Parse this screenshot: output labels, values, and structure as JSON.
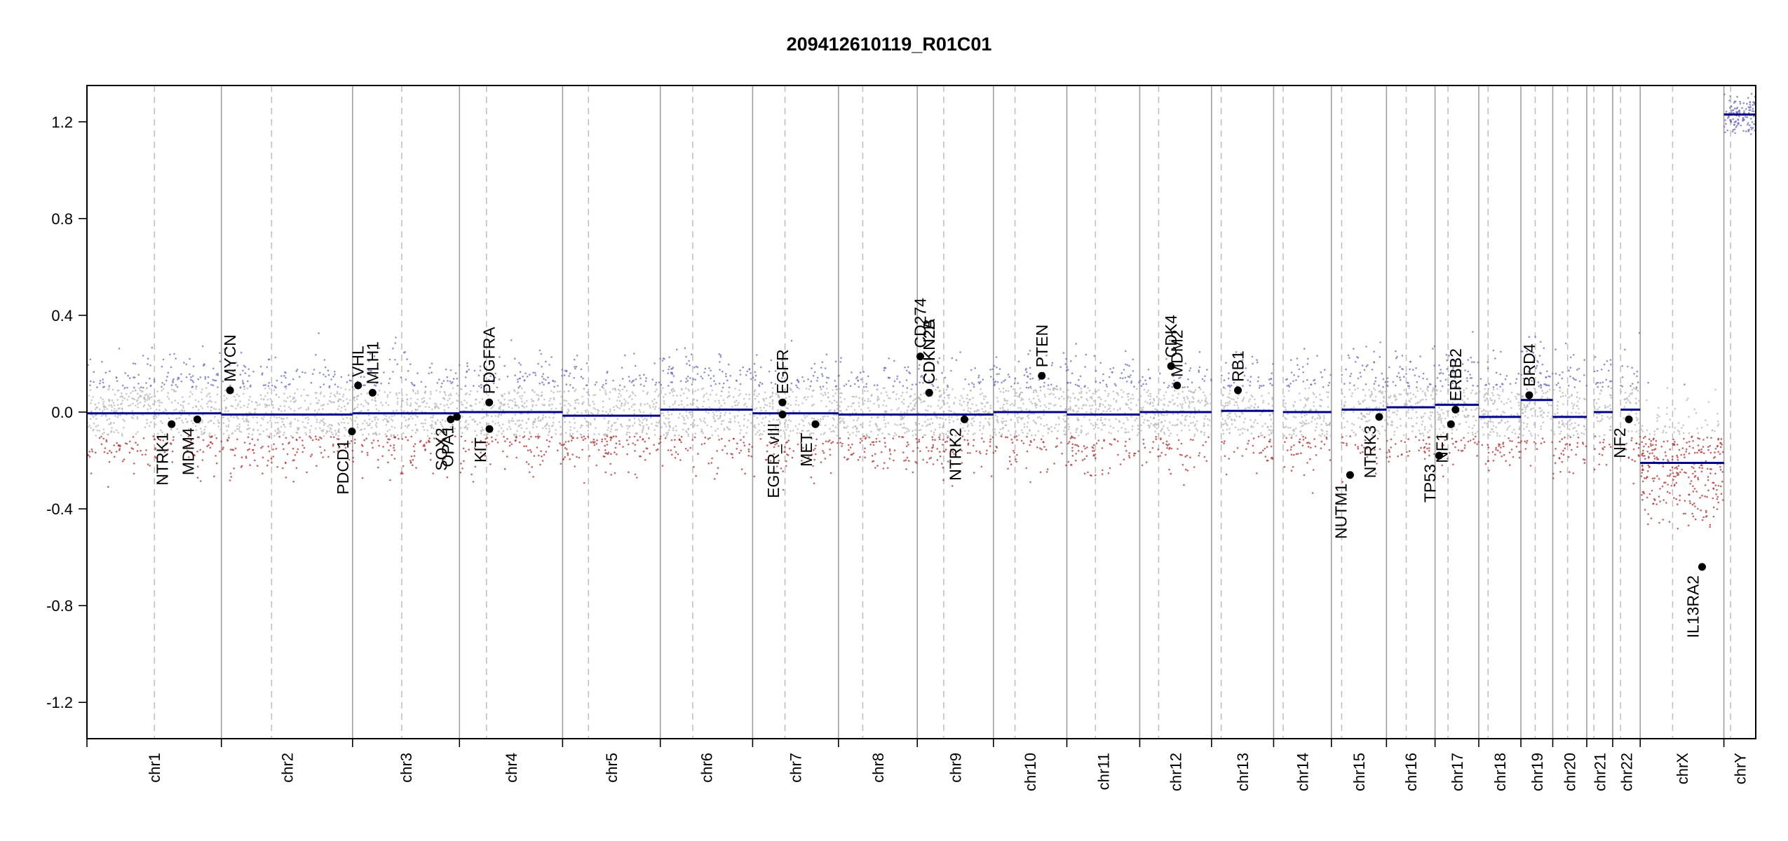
{
  "chart_data": {
    "type": "scatter",
    "title": "209412610119_R01C01",
    "xlabel": "",
    "ylabel": "",
    "ylim": [
      -1.35,
      1.35
    ],
    "yticks": [
      -1.2,
      -0.8,
      -0.4,
      0.0,
      0.4,
      0.8,
      1.2
    ],
    "ytick_labels": [
      "-1.2",
      "-0.8",
      "-0.4",
      "0.0",
      "0.4",
      "0.8",
      "1.2"
    ],
    "colors": {
      "segment": "#00008b",
      "gain_points": "#6b6bc0",
      "loss_points": "#b03030",
      "neutral_points": "#b5b5b5",
      "gene_marker": "#000000",
      "chrom_boundary": "#a0a0a0",
      "centromere": "#c0c0c0"
    },
    "chromosomes": [
      {
        "name": "chr1",
        "length": 249,
        "centromere": 125,
        "segments": [
          {
            "start": 0,
            "end": 249,
            "value": -0.005
          }
        ]
      },
      {
        "name": "chr2",
        "length": 243,
        "centromere": 93,
        "segments": [
          {
            "start": 0,
            "end": 243,
            "value": -0.01
          }
        ]
      },
      {
        "name": "chr3",
        "length": 198,
        "centromere": 91,
        "segments": [
          {
            "start": 0,
            "end": 198,
            "value": -0.005
          }
        ]
      },
      {
        "name": "chr4",
        "length": 191,
        "centromere": 50,
        "segments": [
          {
            "start": 0,
            "end": 191,
            "value": 0.0
          }
        ]
      },
      {
        "name": "chr5",
        "length": 181,
        "centromere": 48,
        "segments": [
          {
            "start": 0,
            "end": 181,
            "value": -0.015
          }
        ]
      },
      {
        "name": "chr6",
        "length": 171,
        "centromere": 60,
        "segments": [
          {
            "start": 0,
            "end": 171,
            "value": 0.01
          }
        ]
      },
      {
        "name": "chr7",
        "length": 159,
        "centromere": 60,
        "segments": [
          {
            "start": 0,
            "end": 159,
            "value": -0.005
          }
        ]
      },
      {
        "name": "chr8",
        "length": 146,
        "centromere": 45,
        "segments": [
          {
            "start": 0,
            "end": 146,
            "value": -0.01
          }
        ]
      },
      {
        "name": "chr9",
        "length": 141,
        "centromere": 49,
        "segments": [
          {
            "start": 0,
            "end": 141,
            "value": -0.01
          }
        ]
      },
      {
        "name": "chr10",
        "length": 136,
        "centromere": 40,
        "segments": [
          {
            "start": 0,
            "end": 136,
            "value": 0.0
          }
        ]
      },
      {
        "name": "chr11",
        "length": 135,
        "centromere": 53,
        "segments": [
          {
            "start": 0,
            "end": 135,
            "value": -0.01
          }
        ]
      },
      {
        "name": "chr12",
        "length": 133,
        "centromere": 35,
        "segments": [
          {
            "start": 0,
            "end": 133,
            "value": 0.0
          }
        ]
      },
      {
        "name": "chr13",
        "length": 115,
        "centromere": 17.9,
        "segments": [
          {
            "start": 17.9,
            "end": 115,
            "value": 0.005
          }
        ]
      },
      {
        "name": "chr14",
        "length": 107,
        "centromere": 17.6,
        "segments": [
          {
            "start": 17.6,
            "end": 107,
            "value": 0.0
          }
        ]
      },
      {
        "name": "chr15",
        "length": 102,
        "centromere": 19,
        "segments": [
          {
            "start": 19,
            "end": 102,
            "value": 0.01
          }
        ]
      },
      {
        "name": "chr16",
        "length": 90,
        "centromere": 36.6,
        "segments": [
          {
            "start": 0,
            "end": 90,
            "value": 0.02
          }
        ]
      },
      {
        "name": "chr17",
        "length": 81,
        "centromere": 24,
        "segments": [
          {
            "start": 0,
            "end": 81,
            "value": 0.03
          }
        ]
      },
      {
        "name": "chr18",
        "length": 78,
        "centromere": 17.2,
        "segments": [
          {
            "start": 0,
            "end": 78,
            "value": -0.02
          }
        ]
      },
      {
        "name": "chr19",
        "length": 59,
        "centromere": 26.5,
        "segments": [
          {
            "start": 0,
            "end": 59,
            "value": 0.05
          }
        ]
      },
      {
        "name": "chr20",
        "length": 63,
        "centromere": 27.5,
        "segments": [
          {
            "start": 0,
            "end": 63,
            "value": -0.02
          }
        ]
      },
      {
        "name": "chr21",
        "length": 48,
        "centromere": 13.2,
        "segments": [
          {
            "start": 13.2,
            "end": 48,
            "value": 0.0
          }
        ]
      },
      {
        "name": "chr22",
        "length": 51,
        "centromere": 14.7,
        "segments": [
          {
            "start": 14.7,
            "end": 51,
            "value": 0.01
          }
        ]
      },
      {
        "name": "chrX",
        "length": 155,
        "centromere": 60,
        "segments": [
          {
            "start": 0,
            "end": 155,
            "value": -0.21
          }
        ]
      },
      {
        "name": "chrY",
        "length": 59,
        "centromere": 12.5,
        "segments": [
          {
            "start": 0,
            "end": 59,
            "value": 1.23
          }
        ]
      }
    ],
    "genes": [
      {
        "name": "NTRK1",
        "chrom": "chr1",
        "pos": 156.8,
        "value": -0.05,
        "side": "below"
      },
      {
        "name": "MDM4",
        "chrom": "chr1",
        "pos": 204.5,
        "value": -0.03,
        "side": "below"
      },
      {
        "name": "MYCN",
        "chrom": "chr2",
        "pos": 16,
        "value": 0.09,
        "side": "above"
      },
      {
        "name": "PDCD1",
        "chrom": "chr2",
        "pos": 241.8,
        "value": -0.08,
        "side": "below"
      },
      {
        "name": "VHL",
        "chrom": "chr3",
        "pos": 10.2,
        "value": 0.11,
        "side": "above"
      },
      {
        "name": "MLH1",
        "chrom": "chr3",
        "pos": 37,
        "value": 0.08,
        "side": "above"
      },
      {
        "name": "SOX2",
        "chrom": "chr3",
        "pos": 181.7,
        "value": -0.03,
        "side": "below"
      },
      {
        "name": "OPA1",
        "chrom": "chr3",
        "pos": 193.3,
        "value": -0.02,
        "side": "below"
      },
      {
        "name": "PDGFRA",
        "chrom": "chr4",
        "pos": 55.1,
        "value": 0.04,
        "side": "above"
      },
      {
        "name": "KIT",
        "chrom": "chr4",
        "pos": 55.5,
        "value": -0.07,
        "side": "below"
      },
      {
        "name": "EGFR",
        "chrom": "chr7",
        "pos": 55.2,
        "value": 0.04,
        "side": "above"
      },
      {
        "name": "EGFR_vIII",
        "chrom": "chr7",
        "pos": 55.3,
        "value": -0.01,
        "side": "below"
      },
      {
        "name": "MET",
        "chrom": "chr7",
        "pos": 116.3,
        "value": -0.05,
        "side": "below"
      },
      {
        "name": "CD274",
        "chrom": "chr9",
        "pos": 5.5,
        "value": 0.23,
        "side": "above"
      },
      {
        "name": "CDKN2A",
        "chrom": "chr9",
        "pos": 21.97,
        "value": 0.08,
        "side": "above"
      },
      {
        "name": "CDKN2B",
        "chrom": "chr9",
        "pos": 22.0,
        "value": 0.08,
        "side": "above"
      },
      {
        "name": "NTRK2",
        "chrom": "chr9",
        "pos": 87.3,
        "value": -0.03,
        "side": "below"
      },
      {
        "name": "PTEN",
        "chrom": "chr10",
        "pos": 89.6,
        "value": 0.15,
        "side": "above"
      },
      {
        "name": "CDK4",
        "chrom": "chr12",
        "pos": 58.1,
        "value": 0.19,
        "side": "above"
      },
      {
        "name": "MDM2",
        "chrom": "chr12",
        "pos": 69.2,
        "value": 0.11,
        "side": "above"
      },
      {
        "name": "RB1",
        "chrom": "chr13",
        "pos": 48.9,
        "value": 0.09,
        "side": "above"
      },
      {
        "name": "NUTM1",
        "chrom": "chr15",
        "pos": 34.6,
        "value": -0.26,
        "side": "below"
      },
      {
        "name": "NTRK3",
        "chrom": "chr15",
        "pos": 88.5,
        "value": -0.02,
        "side": "below"
      },
      {
        "name": "TP53",
        "chrom": "chr17",
        "pos": 7.6,
        "value": -0.18,
        "side": "below"
      },
      {
        "name": "NF1",
        "chrom": "chr17",
        "pos": 29.5,
        "value": -0.05,
        "side": "below"
      },
      {
        "name": "ERBB2",
        "chrom": "chr17",
        "pos": 37.9,
        "value": 0.01,
        "side": "above"
      },
      {
        "name": "BRD4",
        "chrom": "chr19",
        "pos": 15.4,
        "value": 0.07,
        "side": "above"
      },
      {
        "name": "NF2",
        "chrom": "chr22",
        "pos": 30,
        "value": -0.03,
        "side": "below"
      },
      {
        "name": "IL13RA2",
        "chrom": "chrX",
        "pos": 114.6,
        "value": -0.64,
        "side": "below"
      }
    ]
  }
}
